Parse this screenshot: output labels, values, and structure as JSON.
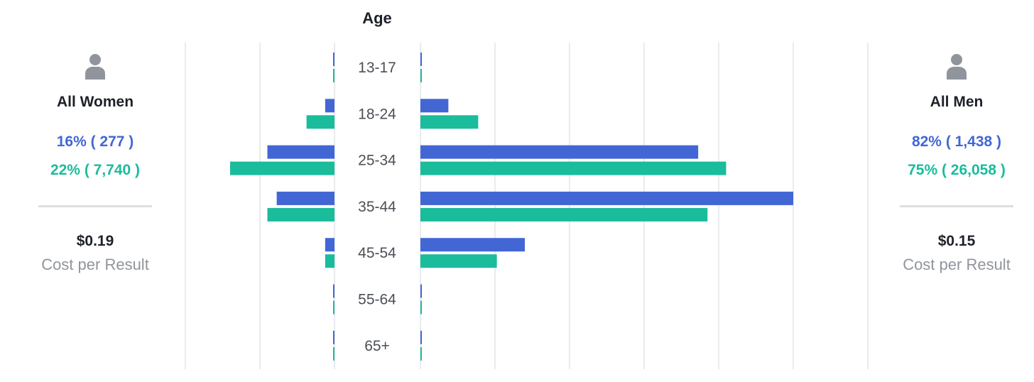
{
  "women": {
    "title": "All Women",
    "stat_primary": "16% ( 277 )",
    "stat_secondary": "22% ( 7,740 )",
    "cost_value": "$0.19",
    "cost_label": "Cost per Result",
    "icon": "person-icon"
  },
  "men": {
    "title": "All Men",
    "stat_primary": "82% ( 1,438 )",
    "stat_secondary": "75% ( 26,058 )",
    "cost_value": "$0.15",
    "cost_label": "Cost per Result",
    "icon": "person-icon"
  },
  "colors": {
    "primary": "#4267d4",
    "secondary": "#1abc9c",
    "grid": "#e9ebee"
  },
  "chart_data": {
    "type": "bar",
    "title": "Age",
    "categories": [
      "13-17",
      "18-24",
      "25-34",
      "35-44",
      "45-54",
      "55-64",
      "65+"
    ],
    "series": [
      {
        "group": "women",
        "metric": "primary",
        "values": [
          0.2,
          2.5,
          18.0,
          15.5,
          2.5,
          0.2,
          0.2
        ]
      },
      {
        "group": "women",
        "metric": "secondary",
        "values": [
          0.2,
          7.5,
          28.0,
          18.0,
          2.5,
          0.2,
          0.2
        ]
      },
      {
        "group": "men",
        "metric": "primary",
        "values": [
          0.2,
          7.5,
          74.5,
          100.0,
          28.0,
          0.2,
          0.2
        ]
      },
      {
        "group": "men",
        "metric": "secondary",
        "values": [
          0.2,
          15.5,
          82.0,
          77.0,
          20.5,
          0.2,
          0.2
        ]
      }
    ],
    "xlim": [
      0,
      100
    ],
    "grid": true
  }
}
